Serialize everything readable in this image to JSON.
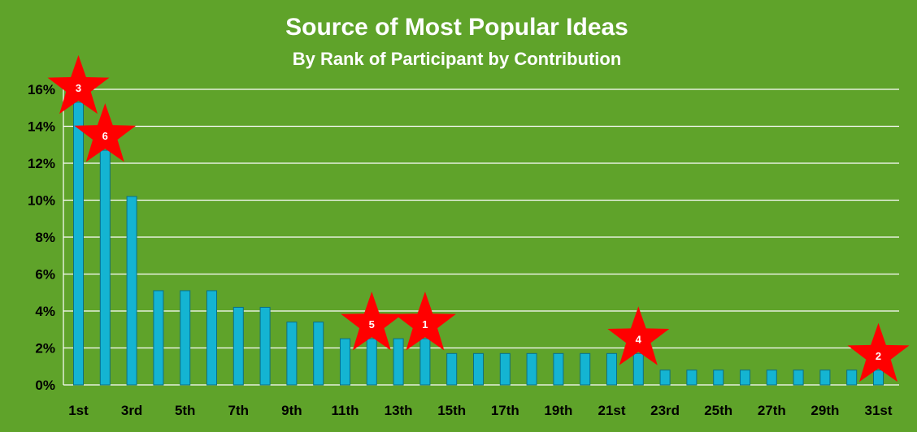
{
  "chart_data": {
    "type": "bar",
    "title": "Source of Most Popular Ideas",
    "subtitle": "By Rank of Participant by Contribution",
    "xlabel": "",
    "ylabel": "",
    "ylim": [
      0,
      16
    ],
    "y_ticks": [
      "0%",
      "2%",
      "4%",
      "6%",
      "8%",
      "10%",
      "12%",
      "14%",
      "16%"
    ],
    "grid": true,
    "categories": [
      "1st",
      "2nd",
      "3rd",
      "4th",
      "5th",
      "6th",
      "7th",
      "8th",
      "9th",
      "10th",
      "11th",
      "12th",
      "13th",
      "14th",
      "15th",
      "16th",
      "17th",
      "18th",
      "19th",
      "20th",
      "21st",
      "22nd",
      "23rd",
      "24th",
      "25th",
      "26th",
      "27th",
      "28th",
      "29th",
      "30th",
      "31st"
    ],
    "x_tick_labels_shown": [
      "1st",
      "3rd",
      "5th",
      "7th",
      "9th",
      "11th",
      "13th",
      "15th",
      "17th",
      "19th",
      "21st",
      "23rd",
      "25th",
      "27th",
      "29th",
      "31st"
    ],
    "values": [
      15.3,
      12.7,
      10.2,
      5.1,
      5.1,
      5.1,
      4.2,
      4.2,
      3.4,
      3.4,
      2.5,
      2.5,
      2.5,
      2.5,
      1.7,
      1.7,
      1.7,
      1.7,
      1.7,
      1.7,
      1.7,
      1.7,
      0.8,
      0.8,
      0.8,
      0.8,
      0.8,
      0.8,
      0.8,
      0.8,
      0.8
    ],
    "annotations": [
      {
        "label": "3",
        "category": "1st"
      },
      {
        "label": "6",
        "category": "2nd"
      },
      {
        "label": "5",
        "category": "12th"
      },
      {
        "label": "1",
        "category": "14th"
      },
      {
        "label": "4",
        "category": "22nd"
      },
      {
        "label": "2",
        "category": "31st"
      }
    ],
    "colors": {
      "background": "#5fa32a",
      "bar_fill": "#14b4d2",
      "bar_stroke": "#0a6f87",
      "grid": "#ffffff",
      "star": "#ff0000",
      "title": "#ffffff",
      "tick_label": "#000000"
    }
  }
}
